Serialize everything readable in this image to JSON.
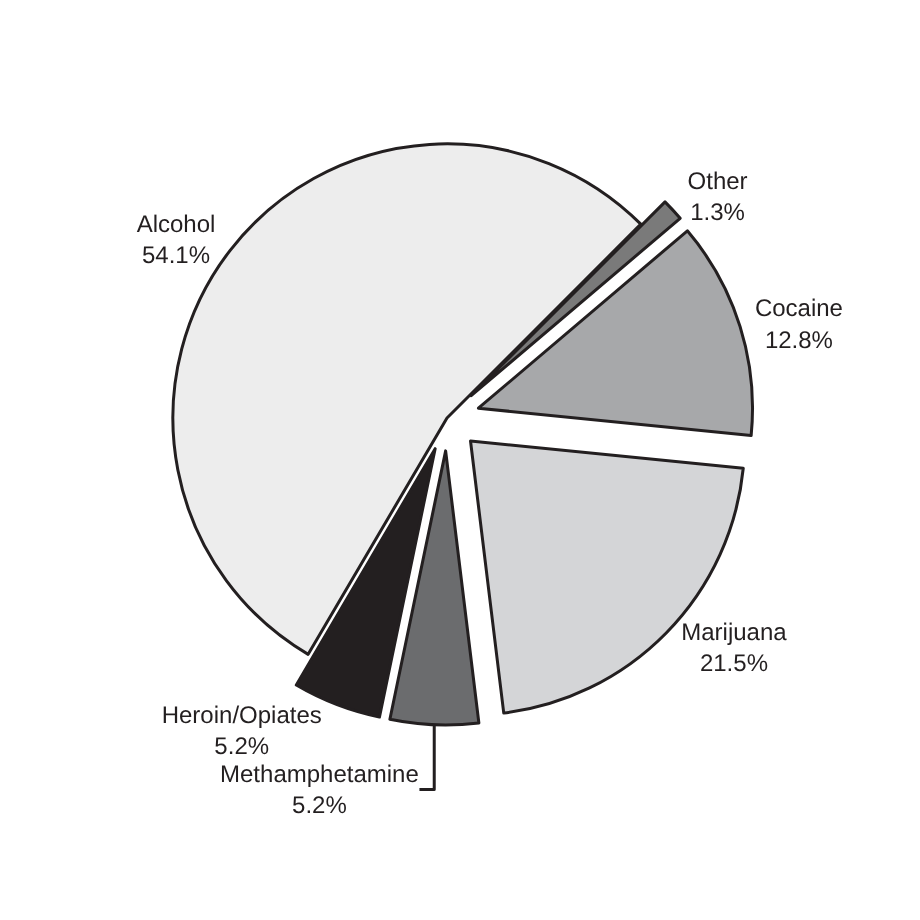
{
  "chart_data": {
    "type": "pie",
    "categories": [
      "Other",
      "Cocaine",
      "Marijuana",
      "Methamphetamine",
      "Heroin/Opiates",
      "Alcohol"
    ],
    "values": [
      1.3,
      12.8,
      21.5,
      5.2,
      5.2,
      54.1
    ],
    "value_labels": [
      "1.3%",
      "12.8%",
      "21.5%",
      "5.2%",
      "5.2%",
      "54.1%"
    ],
    "colors": [
      "#7a7a7a",
      "#a7a8aa",
      "#d4d5d7",
      "#6b6c6e",
      "#231f20",
      "#ededed"
    ],
    "legend": false
  }
}
